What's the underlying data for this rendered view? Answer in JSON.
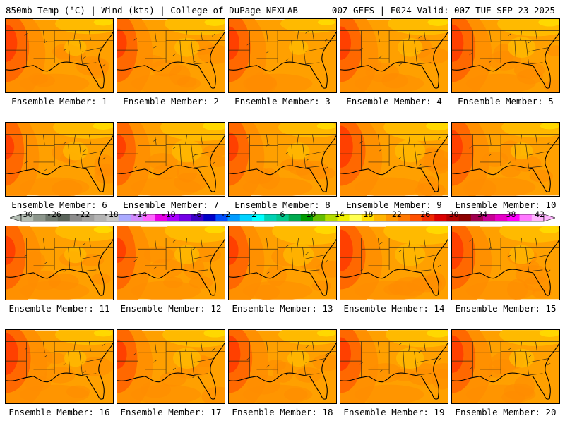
{
  "header": {
    "title_left": "850mb Temp (°C) | Wind (kts) | College of DuPage NEXLAB",
    "title_right": "00Z GEFS | F024 Valid: 00Z TUE SEP 23 2025"
  },
  "members": [
    {
      "label": "Ensemble Member: 1",
      "west_heat": 0.9,
      "east_cool": 0.3
    },
    {
      "label": "Ensemble Member: 2",
      "west_heat": 0.7,
      "east_cool": 0.4
    },
    {
      "label": "Ensemble Member: 3",
      "west_heat": 0.8,
      "east_cool": 0.2
    },
    {
      "label": "Ensemble Member: 4",
      "west_heat": 0.8,
      "east_cool": 0.4
    },
    {
      "label": "Ensemble Member: 5",
      "west_heat": 0.9,
      "east_cool": 0.5
    },
    {
      "label": "Ensemble Member: 6",
      "west_heat": 0.6,
      "east_cool": 0.4
    },
    {
      "label": "Ensemble Member: 7",
      "west_heat": 0.6,
      "east_cool": 0.6
    },
    {
      "label": "Ensemble Member: 8",
      "west_heat": 0.7,
      "east_cool": 0.3
    },
    {
      "label": "Ensemble Member: 9",
      "west_heat": 1.0,
      "east_cool": 0.6
    },
    {
      "label": "Ensemble Member: 10",
      "west_heat": 0.8,
      "east_cool": 0.3
    },
    {
      "label": "Ensemble Member: 11",
      "west_heat": 0.7,
      "east_cool": 0.3
    },
    {
      "label": "Ensemble Member: 12",
      "west_heat": 0.6,
      "east_cool": 0.4
    },
    {
      "label": "Ensemble Member: 13",
      "west_heat": 0.7,
      "east_cool": 0.6
    },
    {
      "label": "Ensemble Member: 14",
      "west_heat": 1.0,
      "east_cool": 0.6
    },
    {
      "label": "Ensemble Member: 15",
      "west_heat": 0.9,
      "east_cool": 0.4
    },
    {
      "label": "Ensemble Member: 16",
      "west_heat": 1.0,
      "east_cool": 0.3
    },
    {
      "label": "Ensemble Member: 17",
      "west_heat": 0.7,
      "east_cool": 0.5
    },
    {
      "label": "Ensemble Member: 18",
      "west_heat": 0.9,
      "east_cool": 0.3
    },
    {
      "label": "Ensemble Member: 19",
      "west_heat": 0.8,
      "east_cool": 0.5
    },
    {
      "label": "Ensemble Member: 20",
      "west_heat": 0.9,
      "east_cool": 0.4
    }
  ],
  "colorbar": {
    "tick_labels": [
      "-30",
      "-26",
      "-22",
      "-18",
      "-14",
      "-10",
      "-6",
      "-2",
      "2",
      "6",
      "10",
      "14",
      "18",
      "22",
      "26",
      "30",
      "34",
      "38",
      "42"
    ],
    "colors": [
      "#b4beb4",
      "#8c968c",
      "#6e786e",
      "#5a645a",
      "#8c8c8c",
      "#a0a0a0",
      "#b4b4b4",
      "#c8c8c8",
      "#aaaaff",
      "#d28cff",
      "#ff64ff",
      "#e600e6",
      "#aa00ff",
      "#7300e6",
      "#3c00c8",
      "#0000c8",
      "#0050ff",
      "#009bff",
      "#00d2ff",
      "#00ffff",
      "#00d2b4",
      "#00c88c",
      "#00aa50",
      "#009b00",
      "#64be00",
      "#b4dc00",
      "#f0f000",
      "#ffff50",
      "#ffdc00",
      "#ffb400",
      "#ff9600",
      "#ff7800",
      "#ff5000",
      "#f02800",
      "#dc0000",
      "#b40000",
      "#8c0000",
      "#a00050",
      "#c80096",
      "#e600c8",
      "#ff00ff",
      "#ff78ff",
      "#ffb4ff"
    ]
  },
  "colors": {
    "base": "#ffa000",
    "warm": "#ff8c00",
    "hot": "#ff6400",
    "hotter": "#ff3c00",
    "cool": "#ffbe00",
    "coolest": "#ffdc00",
    "lines": "#3a2a10"
  }
}
